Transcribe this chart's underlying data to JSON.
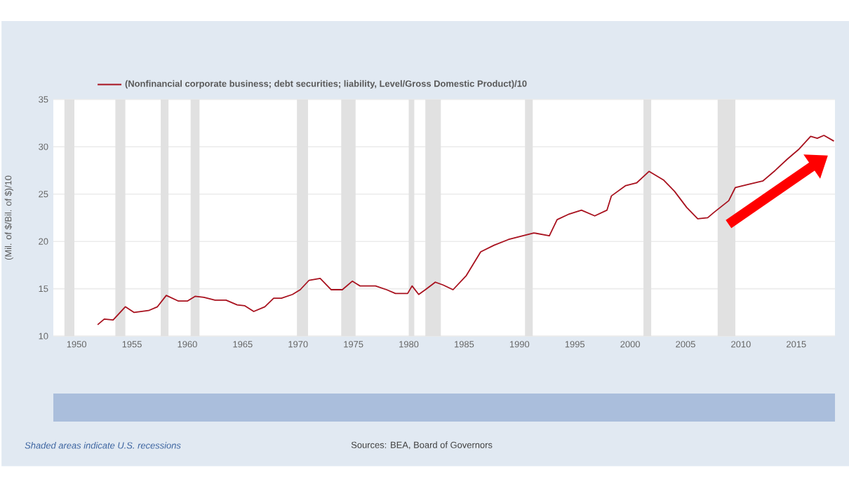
{
  "chart_data": {
    "type": "line",
    "ylabel": "(Mil. of $/Bil. of $)/10",
    "x": [
      1951.9,
      1952.5,
      1953.3,
      1954.4,
      1955.2,
      1956.5,
      1957.3,
      1958.1,
      1959.2,
      1960.0,
      1960.7,
      1961.5,
      1962.5,
      1963.5,
      1964.5,
      1965.2,
      1966.0,
      1967.0,
      1967.8,
      1968.5,
      1969.5,
      1970.2,
      1971.0,
      1972.0,
      1973.0,
      1974.0,
      1974.9,
      1975.6,
      1977.0,
      1978.0,
      1978.8,
      1979.9,
      1980.3,
      1980.9,
      1981.5,
      1982.4,
      1983.1,
      1984.0,
      1985.2,
      1986.5,
      1987.7,
      1989.0,
      1990.3,
      1991.3,
      1992.7,
      1993.4,
      1994.5,
      1995.6,
      1996.8,
      1997.9,
      1998.3,
      1999.6,
      2000.6,
      2001.7,
      2003.0,
      2004.0,
      2005.1,
      2006.1,
      2007.0,
      2007.6,
      2008.9,
      2009.5,
      2010.6,
      2012.0,
      2013.1,
      2014.2,
      2015.2,
      2016.3,
      2016.9,
      2017.5,
      2018.4
    ],
    "series": [
      {
        "name": "(Nonfinancial corporate business; debt securities; liability, Level/Gross Domestic Product)/10",
        "color": "#a8111e",
        "values": [
          11.2,
          11.8,
          11.7,
          13.1,
          12.5,
          12.7,
          13.1,
          14.3,
          13.7,
          13.7,
          14.2,
          14.1,
          13.8,
          13.8,
          13.3,
          13.2,
          12.6,
          13.1,
          14.0,
          14.0,
          14.4,
          14.9,
          15.9,
          16.1,
          14.9,
          14.9,
          15.8,
          15.3,
          15.3,
          14.9,
          14.5,
          14.5,
          15.3,
          14.4,
          14.9,
          15.7,
          15.4,
          14.9,
          16.4,
          18.9,
          19.6,
          20.2,
          20.6,
          20.9,
          20.6,
          22.3,
          22.9,
          23.3,
          22.7,
          23.3,
          24.8,
          25.9,
          26.2,
          27.4,
          26.5,
          25.3,
          23.6,
          22.4,
          22.5,
          23.1,
          24.3,
          25.7,
          26.0,
          26.4,
          27.5,
          28.7,
          29.7,
          31.1,
          30.9,
          31.2,
          30.6
        ]
      }
    ],
    "xlim": [
      1947.9,
      2018.5
    ],
    "xticks": [
      1950,
      1955,
      1960,
      1965,
      1970,
      1975,
      1980,
      1985,
      1990,
      1995,
      2000,
      2005,
      2010,
      2015
    ],
    "ylim": [
      10,
      35
    ],
    "yticks": [
      10,
      15,
      20,
      25,
      30,
      35
    ],
    "grid": "y",
    "legend": "top",
    "bands": [
      {
        "axis": "x",
        "from": 1948.9,
        "to": 1949.8,
        "color": "#e1e1e1"
      },
      {
        "axis": "x",
        "from": 1953.5,
        "to": 1954.4,
        "color": "#e1e1e1"
      },
      {
        "axis": "x",
        "from": 1957.6,
        "to": 1958.3,
        "color": "#e1e1e1"
      },
      {
        "axis": "x",
        "from": 1960.3,
        "to": 1961.1,
        "color": "#e1e1e1"
      },
      {
        "axis": "x",
        "from": 1969.9,
        "to": 1970.9,
        "color": "#e1e1e1"
      },
      {
        "axis": "x",
        "from": 1973.9,
        "to": 1975.2,
        "color": "#e1e1e1"
      },
      {
        "axis": "x",
        "from": 1980.0,
        "to": 1980.5,
        "color": "#e1e1e1"
      },
      {
        "axis": "x",
        "from": 1981.5,
        "to": 1982.9,
        "color": "#e1e1e1"
      },
      {
        "axis": "x",
        "from": 1990.5,
        "to": 1991.2,
        "color": "#e1e1e1"
      },
      {
        "axis": "x",
        "from": 2001.2,
        "to": 2001.9,
        "color": "#e1e1e1"
      },
      {
        "axis": "x",
        "from": 2007.9,
        "to": 2009.5,
        "color": "#e1e1e1"
      }
    ],
    "annotations": [
      "Shaded areas indicate U.S. recessions",
      "Sources: BEA, Board of Governors"
    ]
  }
}
